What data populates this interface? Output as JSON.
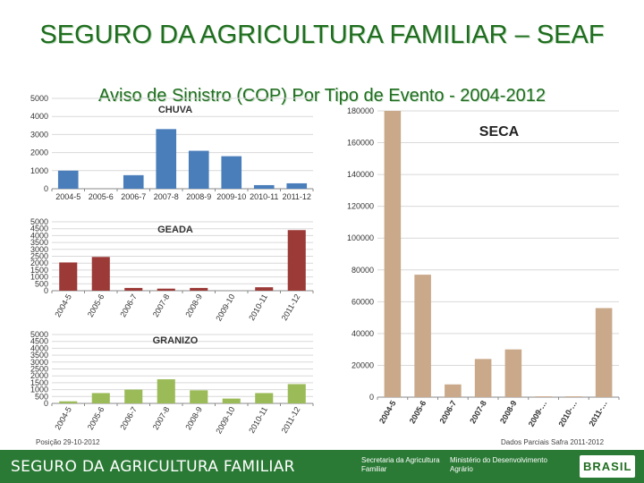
{
  "header": {
    "title": "SEGURO DA AGRICULTURA FAMILIAR – SEAF",
    "subtitle": "Aviso de Sinistro (COP) Por Tipo de Evento  -  2004-2012"
  },
  "notes": {
    "left": "Posição 29-10-2012",
    "right": "Dados Parciais Safra 2011-2012"
  },
  "footer": {
    "title": "SEGURO DA AGRICULTURA FAMILIAR",
    "logo1": "Secretaria da Agricultura Familiar",
    "logo2": "Ministério do Desenvolvimento Agrário",
    "brasil": "BRASIL"
  },
  "colors": {
    "chuva": "#4a7ebb",
    "geada": "#9b3a37",
    "granizo": "#9bbb59",
    "seca": "#c9a98a",
    "grid": "#d9d9d9",
    "green_title": "#1f6d1f"
  },
  "chart_data": [
    {
      "type": "bar",
      "title": "CHUVA",
      "categories": [
        "2004-5",
        "2005-6",
        "2006-7",
        "2007-8",
        "2008-9",
        "2009-10",
        "2010-11",
        "2011-12"
      ],
      "values": [
        1000,
        0,
        750,
        3300,
        2100,
        1800,
        200,
        300
      ],
      "ylim": [
        0,
        5000
      ],
      "yticks": [
        0,
        1000,
        2000,
        3000,
        4000,
        5000
      ],
      "grid": true,
      "rotated_labels": false
    },
    {
      "type": "bar",
      "title": "GEADA",
      "categories": [
        "2004-5",
        "2005-6",
        "2006-7",
        "2007-8",
        "2008-9",
        "2009-10",
        "2010-11",
        "2011-12"
      ],
      "values": [
        2050,
        2450,
        200,
        150,
        200,
        0,
        250,
        4400
      ],
      "ylim": [
        0,
        5000
      ],
      "yticks": [
        0,
        500,
        1000,
        1500,
        2000,
        2500,
        3000,
        3500,
        4000,
        4500,
        5000
      ],
      "grid": true,
      "rotated_labels": true
    },
    {
      "type": "bar",
      "title": "GRANIZO",
      "categories": [
        "2004-5",
        "2005-6",
        "2006-7",
        "2007-8",
        "2008-9",
        "2009-10",
        "2010-11",
        "2011-12"
      ],
      "values": [
        150,
        750,
        1000,
        1750,
        950,
        350,
        750,
        1400
      ],
      "ylim": [
        0,
        5000
      ],
      "yticks": [
        0,
        500,
        1000,
        1500,
        2000,
        2500,
        3000,
        3500,
        4000,
        4500,
        5000
      ],
      "grid": true,
      "rotated_labels": true
    },
    {
      "type": "bar",
      "title": "SECA",
      "categories": [
        "2004-5",
        "2005-6",
        "2006-7",
        "2007-8",
        "2008-9",
        "2009-…",
        "2010-…",
        "2011-…"
      ],
      "values": [
        180000,
        77000,
        8000,
        24000,
        30000,
        500,
        500,
        56000
      ],
      "ylim": [
        0,
        180000
      ],
      "yticks": [
        0,
        20000,
        40000,
        60000,
        80000,
        100000,
        120000,
        140000,
        160000,
        180000
      ],
      "grid": true,
      "rotated_labels": true
    }
  ]
}
